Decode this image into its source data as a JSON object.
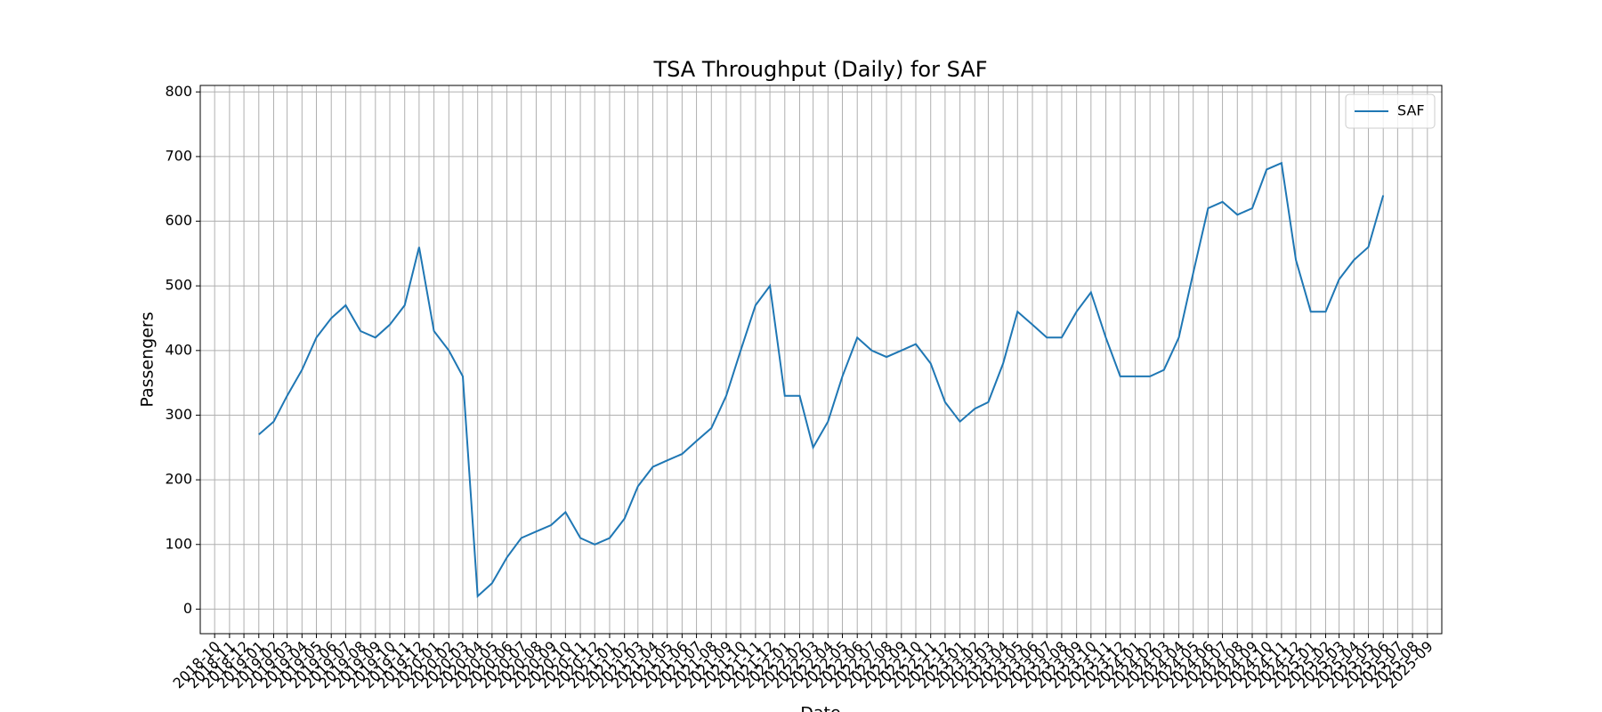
{
  "chart_data": {
    "type": "line",
    "title": "TSA Throughput (Daily) for SAF",
    "x_label": "Date",
    "y_label": "Passengers",
    "x": [
      "2019-01",
      "2019-02",
      "2019-03",
      "2019-04",
      "2019-05",
      "2019-06",
      "2019-07",
      "2019-08",
      "2019-09",
      "2019-10",
      "2019-11",
      "2019-12",
      "2020-01",
      "2020-02",
      "2020-03",
      "2020-04",
      "2020-05",
      "2020-06",
      "2020-07",
      "2020-08",
      "2020-09",
      "2020-10",
      "2020-11",
      "2020-12",
      "2021-01",
      "2021-02",
      "2021-03",
      "2021-04",
      "2021-05",
      "2021-06",
      "2021-07",
      "2021-08",
      "2021-09",
      "2021-10",
      "2021-11",
      "2021-12",
      "2022-01",
      "2022-02",
      "2022-03",
      "2022-04",
      "2022-05",
      "2022-06",
      "2022-07",
      "2022-08",
      "2022-09",
      "2022-10",
      "2022-11",
      "2022-12",
      "2023-01",
      "2023-02",
      "2023-03",
      "2023-04",
      "2023-05",
      "2023-06",
      "2023-07",
      "2023-08",
      "2023-09",
      "2023-10",
      "2023-11",
      "2023-12",
      "2024-01",
      "2024-02",
      "2024-03",
      "2024-04",
      "2024-05",
      "2024-06",
      "2024-07",
      "2024-08",
      "2024-09",
      "2024-10",
      "2024-11",
      "2024-12",
      "2025-01",
      "2025-02",
      "2025-03",
      "2025-04",
      "2025-05",
      "2025-06"
    ],
    "series": [
      {
        "name": "SAF",
        "color": "#1f77b4",
        "values": [
          270,
          290,
          330,
          370,
          420,
          450,
          470,
          430,
          420,
          440,
          470,
          560,
          430,
          400,
          360,
          20,
          40,
          80,
          110,
          120,
          130,
          150,
          110,
          100,
          110,
          140,
          190,
          220,
          230,
          240,
          260,
          280,
          330,
          400,
          470,
          500,
          330,
          330,
          250,
          290,
          360,
          420,
          400,
          390,
          400,
          410,
          380,
          320,
          290,
          310,
          320,
          380,
          460,
          440,
          420,
          420,
          460,
          490,
          420,
          360,
          360,
          360,
          370,
          420,
          520,
          620,
          630,
          610,
          620,
          680,
          690,
          540,
          460,
          460,
          510,
          540,
          560,
          640
        ]
      }
    ],
    "xlim": [
      "2018-09",
      "2025-10"
    ],
    "xticks": [
      "2018-10",
      "2018-11",
      "2018-12",
      "2019-01",
      "2019-02",
      "2019-03",
      "2019-04",
      "2019-05",
      "2019-06",
      "2019-07",
      "2019-08",
      "2019-09",
      "2019-10",
      "2019-11",
      "2019-12",
      "2020-01",
      "2020-02",
      "2020-03",
      "2020-04",
      "2020-05",
      "2020-06",
      "2020-07",
      "2020-08",
      "2020-09",
      "2020-10",
      "2020-11",
      "2020-12",
      "2021-01",
      "2021-02",
      "2021-03",
      "2021-04",
      "2021-05",
      "2021-06",
      "2021-07",
      "2021-08",
      "2021-09",
      "2021-10",
      "2021-11",
      "2021-12",
      "2022-01",
      "2022-02",
      "2022-03",
      "2022-04",
      "2022-05",
      "2022-06",
      "2022-07",
      "2022-08",
      "2022-09",
      "2022-10",
      "2022-11",
      "2022-12",
      "2023-01",
      "2023-02",
      "2023-03",
      "2023-04",
      "2023-05",
      "2023-06",
      "2023-07",
      "2023-08",
      "2023-09",
      "2023-10",
      "2023-11",
      "2023-12",
      "2024-01",
      "2024-02",
      "2024-03",
      "2024-04",
      "2024-05",
      "2024-06",
      "2024-07",
      "2024-08",
      "2024-09",
      "2024-10",
      "2024-11",
      "2024-12",
      "2025-01",
      "2025-02",
      "2025-03",
      "2025-04",
      "2025-05",
      "2025-06",
      "2025-07",
      "2025-08",
      "2025-09"
    ],
    "ylim": [
      -38,
      810
    ],
    "yticks": [
      0,
      100,
      200,
      300,
      400,
      500,
      600,
      700,
      800
    ],
    "grid": true,
    "legend": "upper right"
  }
}
